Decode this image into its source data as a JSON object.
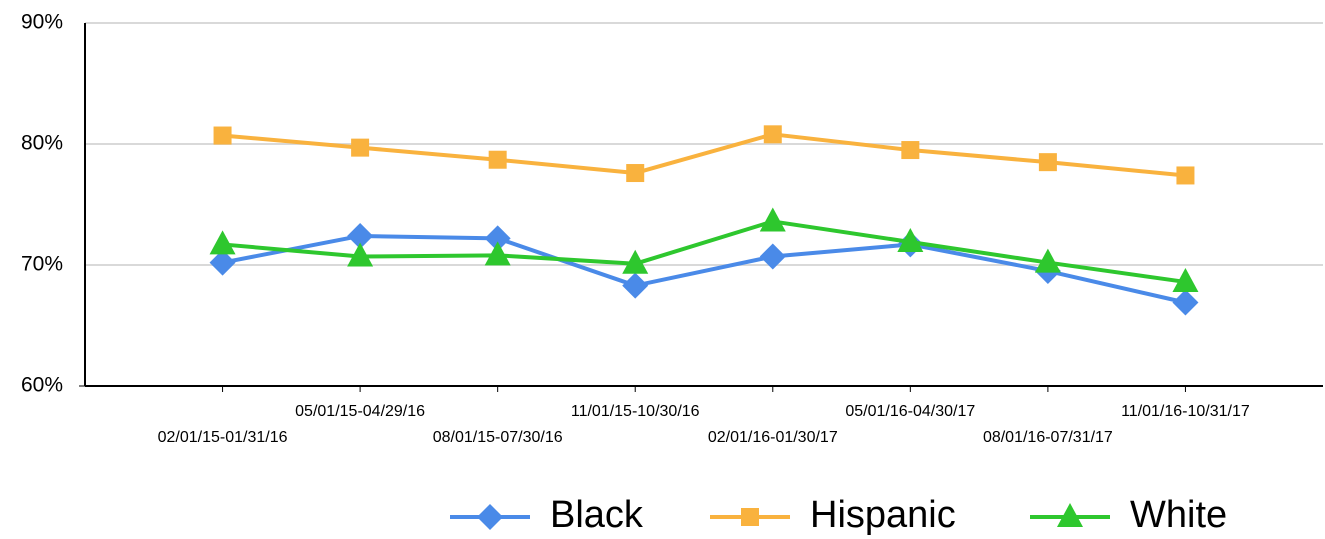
{
  "chart_data": {
    "type": "line",
    "categories": [
      "02/01/15-01/31/16",
      "05/01/15-04/29/16",
      "08/01/15-07/30/16",
      "11/01/15-10/30/16",
      "02/01/16-01/30/17",
      "05/01/16-04/30/17",
      "08/01/16-07/31/17",
      "11/01/16-10/31/17"
    ],
    "series": [
      {
        "name": "Black",
        "color": "#4a8ae8",
        "marker": "diamond",
        "values": [
          70.2,
          72.4,
          72.2,
          68.3,
          70.7,
          71.7,
          69.5,
          66.9
        ]
      },
      {
        "name": "Hispanic",
        "color": "#f9b23e",
        "marker": "square",
        "values": [
          80.7,
          79.7,
          78.7,
          77.6,
          80.8,
          79.5,
          78.5,
          77.4
        ]
      },
      {
        "name": "White",
        "color": "#2ec72e",
        "marker": "triangle",
        "values": [
          71.7,
          70.7,
          70.8,
          70.1,
          73.6,
          71.9,
          70.2,
          68.6
        ]
      }
    ],
    "ylim": [
      60,
      90
    ],
    "yticks": [
      {
        "value": 60,
        "label": "60%"
      },
      {
        "value": 70,
        "label": "70%"
      },
      {
        "value": 80,
        "label": "80%"
      },
      {
        "value": 90,
        "label": "90%"
      }
    ],
    "grid": true,
    "legend": "bottom"
  }
}
